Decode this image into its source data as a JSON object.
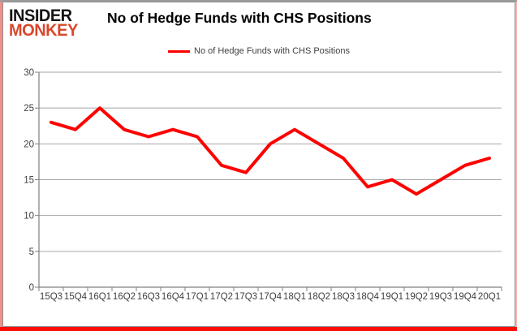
{
  "logo": {
    "line1": "INSIDER",
    "line2": "MONKEY",
    "accent_color": "#d9472b"
  },
  "chart_data": {
    "type": "line",
    "title": "No of Hedge Funds with CHS Positions",
    "legend": "No of Hedge Funds with CHS Positions",
    "legend_position": "top",
    "categories": [
      "15Q3",
      "15Q4",
      "16Q1",
      "16Q2",
      "16Q3",
      "16Q4",
      "17Q1",
      "17Q2",
      "17Q3",
      "17Q4",
      "18Q1",
      "18Q2",
      "18Q3",
      "18Q4",
      "19Q1",
      "19Q2",
      "19Q3",
      "19Q4",
      "20Q1"
    ],
    "values": [
      23,
      22,
      25,
      22,
      21,
      22,
      21,
      17,
      16,
      20,
      22,
      20,
      18,
      14,
      15,
      13,
      15,
      17,
      18
    ],
    "xlabel": "",
    "ylabel": "",
    "ylim": [
      0,
      30
    ],
    "ytick_step": 5,
    "grid": true,
    "line_color": "#fe0000",
    "grid_color": "#a6a6a6",
    "axis_color": "#808080",
    "tick_label_color": "#3f3f3f"
  }
}
